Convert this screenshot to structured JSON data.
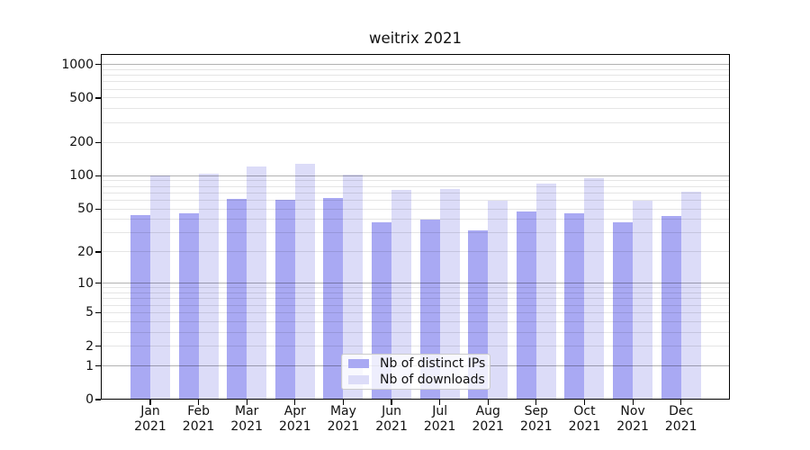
{
  "chart_data": {
    "type": "bar",
    "title": "weitrix 2021",
    "months": [
      "Jan",
      "Feb",
      "Mar",
      "Apr",
      "May",
      "Jun",
      "Jul",
      "Aug",
      "Sep",
      "Oct",
      "Nov",
      "Dec"
    ],
    "year": "2021",
    "categories": [
      "Jan 2021",
      "Feb 2021",
      "Mar 2021",
      "Apr 2021",
      "May 2021",
      "Jun 2021",
      "Jul 2021",
      "Aug 2021",
      "Sep 2021",
      "Oct 2021",
      "Nov 2021",
      "Dec 2021"
    ],
    "series": [
      {
        "name": "Nb of distinct IPs",
        "color": "#a9a9f3",
        "values": [
          44,
          46,
          62,
          60,
          63,
          38,
          40,
          32,
          47,
          46,
          38,
          43
        ]
      },
      {
        "name": "Nb of downloads",
        "color": "#dcdcf8",
        "values": [
          101,
          105,
          121,
          129,
          102,
          75,
          76,
          59,
          85,
          95,
          59,
          72
        ]
      }
    ],
    "y_ticks": [
      0,
      1,
      2,
      5,
      10,
      20,
      50,
      100,
      200,
      500,
      1000
    ],
    "y_major_gridlines": [
      1,
      10,
      100,
      1000
    ],
    "scale": "log1p",
    "ylim": [
      0,
      1240
    ],
    "xlabel": "",
    "ylabel": "",
    "grid": true,
    "legend_position": "lower center"
  }
}
